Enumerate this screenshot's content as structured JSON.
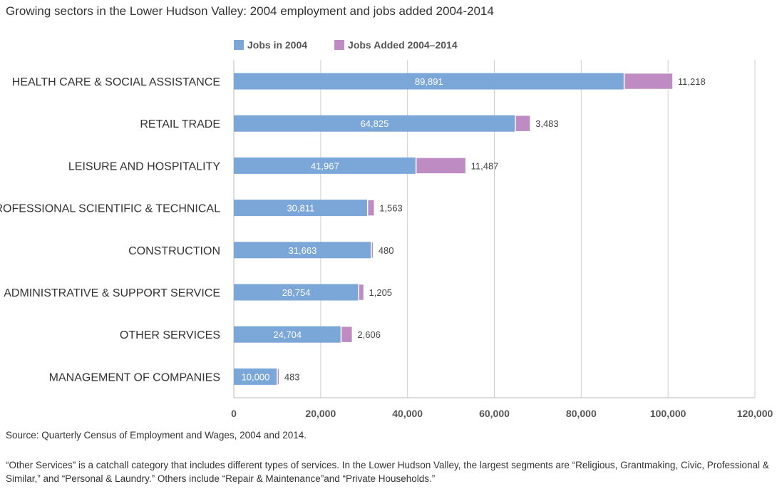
{
  "title": "Growing sectors in the Lower Hudson Valley: 2004 employment and jobs added 2004-2014",
  "colors": {
    "jobs_2004": "#7ba6d8",
    "jobs_added": "#be8cc2",
    "grid": "#d0d0d0"
  },
  "chart_data": {
    "type": "bar",
    "orientation": "horizontal",
    "stacked": true,
    "categories": [
      "HEALTH CARE & SOCIAL ASSISTANCE",
      "RETAIL TRADE",
      "LEISURE AND HOSPITALITY",
      "PROFESSIONAL SCIENTIFIC & TECHNICAL",
      "CONSTRUCTION",
      "ADMINISTRATIVE & SUPPORT SERVICE",
      "OTHER SERVICES",
      "MANAGEMENT OF COMPANIES"
    ],
    "series": [
      {
        "name": "Jobs in 2004",
        "values": [
          89891,
          64825,
          41967,
          30811,
          31663,
          28754,
          24704,
          10000
        ],
        "labels": [
          "89,891",
          "64,825",
          "41,967",
          "30,811",
          "31,663",
          "28,754",
          "24,704",
          "10,000"
        ]
      },
      {
        "name": "Jobs Added 2004–2014",
        "values": [
          11218,
          3483,
          11487,
          1563,
          480,
          1205,
          2606,
          483
        ],
        "labels": [
          "11,218",
          "3,483",
          "11,487",
          "1,563",
          "480",
          "1,205",
          "2,606",
          "483"
        ]
      }
    ],
    "xlim": [
      0,
      120000
    ],
    "xticks": [
      0,
      20000,
      40000,
      60000,
      80000,
      100000,
      120000
    ],
    "xtick_labels": [
      "0",
      "20,000",
      "40,000",
      "60,000",
      "80,000",
      "100,000",
      "120,000"
    ],
    "grid": true,
    "legend_position": "top"
  },
  "source": "Source: Quarterly Census of Employment and Wages, 2004 and 2014.",
  "note": "“Other Services” is a catchall category that includes different types of services. In the Lower Hudson Valley, the largest segments are “Religious, Grantmaking, Civic, Professional & Similar,” and “Personal & Laundry.” Others include “Repair & Maintenance”and “Private Households.”"
}
